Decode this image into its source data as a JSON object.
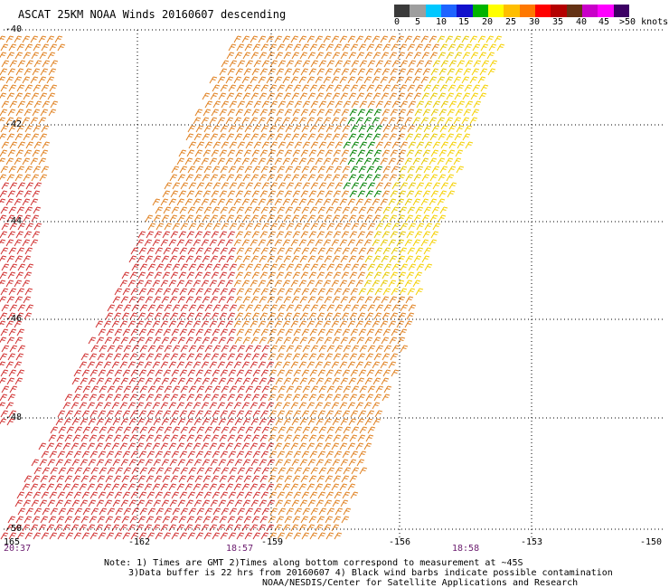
{
  "title": "ASCAT 25KM NOAA Winds 20160607 descending",
  "legend": {
    "colors": [
      "#3a3a3a",
      "#9e9e9e",
      "#00c8ff",
      "#1e64ff",
      "#1111cc",
      "#00b400",
      "#ffff00",
      "#ffbe00",
      "#ff7800",
      "#ff0000",
      "#b40000",
      "#643214",
      "#c800c8",
      "#ff00ff",
      "#3c0064"
    ],
    "labels": [
      "0",
      "5",
      "10",
      "15",
      "20",
      "25",
      "30",
      "35",
      "40",
      "45",
      ">50 knots"
    ]
  },
  "axes": {
    "lat_labels": [
      "-40",
      "-42",
      "-44",
      "-46",
      "-48",
      "-50"
    ],
    "lon_labels": [
      "165",
      "-162",
      "-159",
      "-156",
      "-153",
      "-150"
    ]
  },
  "swath_times": [
    "20:37",
    "18:57",
    "18:58"
  ],
  "notes": {
    "line1": "Note: 1) Times are GMT 2)Times along bottom correspond to measurement at ~45S",
    "line2": "3)Data buffer is 22 hrs from 20160607 4) Black wind barbs indicate possible contamination",
    "line3": "NOAA/NESDIS/Center for Satellite Applications and Research"
  },
  "wind_colors": {
    "light": "#f5d000",
    "yellow": "#e6c800",
    "orange": "#e08020",
    "red": "#d03030",
    "green": "#008000"
  }
}
